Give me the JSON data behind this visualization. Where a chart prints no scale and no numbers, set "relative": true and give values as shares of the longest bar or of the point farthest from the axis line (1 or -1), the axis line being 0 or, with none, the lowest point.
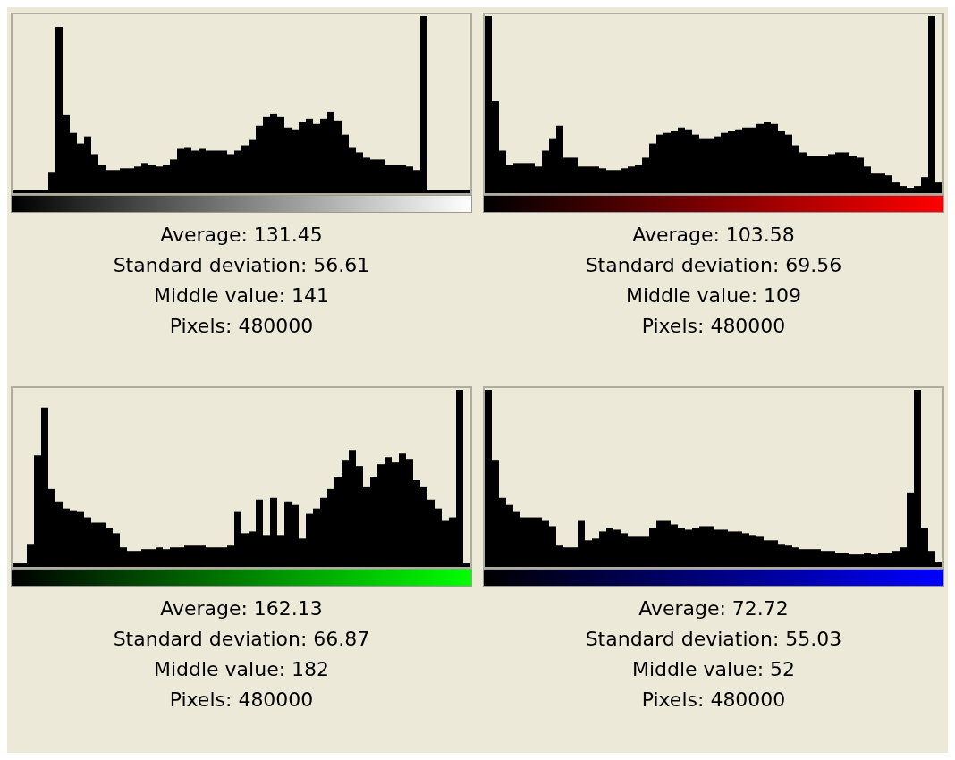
{
  "chart_data": [
    {
      "type": "bar",
      "relative": true,
      "color": "#000000",
      "categories": [
        null,
        null,
        null,
        null,
        null,
        null,
        null,
        null,
        null,
        null,
        null,
        null,
        null,
        null,
        null,
        null,
        null,
        null,
        null,
        null,
        null,
        null,
        null,
        null,
        null,
        null,
        null,
        null,
        null,
        null,
        null,
        null,
        null,
        null,
        null,
        null,
        null,
        null,
        null,
        null,
        null,
        null,
        null,
        null,
        null,
        null,
        null,
        null,
        null,
        null,
        null,
        null,
        null,
        null,
        null,
        null,
        null,
        null,
        null,
        null,
        null,
        null,
        null,
        null
      ],
      "values": [
        0.02,
        0.02,
        0.02,
        0.02,
        0.02,
        0.12,
        0.94,
        0.44,
        0.34,
        0.28,
        0.32,
        0.22,
        0.16,
        0.13,
        0.13,
        0.14,
        0.14,
        0.15,
        0.17,
        0.16,
        0.15,
        0.16,
        0.19,
        0.25,
        0.26,
        0.24,
        0.25,
        0.24,
        0.24,
        0.24,
        0.22,
        0.24,
        0.27,
        0.3,
        0.38,
        0.43,
        0.45,
        0.43,
        0.37,
        0.36,
        0.4,
        0.42,
        0.39,
        0.42,
        0.46,
        0.41,
        0.33,
        0.26,
        0.23,
        0.2,
        0.19,
        0.19,
        0.16,
        0.16,
        0.16,
        0.15,
        0.13,
        1,
        0.02,
        0.02,
        0.02,
        0.02,
        0.02,
        0.02
      ],
      "annotations": [
        "Average: 131.45",
        "Standard deviation: 56.61",
        "Middle value: 141",
        "Pixels: 480000"
      ]
    },
    {
      "type": "bar",
      "relative": true,
      "color": "#000000",
      "categories": [
        null,
        null,
        null,
        null,
        null,
        null,
        null,
        null,
        null,
        null,
        null,
        null,
        null,
        null,
        null,
        null,
        null,
        null,
        null,
        null,
        null,
        null,
        null,
        null,
        null,
        null,
        null,
        null,
        null,
        null,
        null,
        null,
        null,
        null,
        null,
        null,
        null,
        null,
        null,
        null,
        null,
        null,
        null,
        null,
        null,
        null,
        null,
        null,
        null,
        null,
        null,
        null,
        null,
        null,
        null,
        null,
        null,
        null,
        null,
        null,
        null,
        null,
        null,
        null
      ],
      "values": [
        1,
        0.52,
        0.24,
        0.16,
        0.17,
        0.17,
        0.17,
        0.15,
        0.24,
        0.31,
        0.38,
        0.2,
        0.2,
        0.15,
        0.15,
        0.15,
        0.14,
        0.13,
        0.13,
        0.14,
        0.15,
        0.16,
        0.2,
        0.28,
        0.33,
        0.34,
        0.35,
        0.37,
        0.36,
        0.33,
        0.31,
        0.31,
        0.32,
        0.34,
        0.35,
        0.36,
        0.37,
        0.37,
        0.39,
        0.4,
        0.39,
        0.35,
        0.33,
        0.27,
        0.23,
        0.21,
        0.21,
        0.21,
        0.22,
        0.23,
        0.23,
        0.21,
        0.2,
        0.15,
        0.11,
        0.11,
        0.1,
        0.06,
        0.04,
        0.03,
        0.04,
        0.09,
        1,
        0.06
      ],
      "annotations": [
        "Average: 103.58",
        "Standard deviation: 69.56",
        "Middle value: 109",
        "Pixels: 480000"
      ]
    },
    {
      "type": "bar",
      "relative": true,
      "color": "#000000",
      "categories": [
        null,
        null,
        null,
        null,
        null,
        null,
        null,
        null,
        null,
        null,
        null,
        null,
        null,
        null,
        null,
        null,
        null,
        null,
        null,
        null,
        null,
        null,
        null,
        null,
        null,
        null,
        null,
        null,
        null,
        null,
        null,
        null,
        null,
        null,
        null,
        null,
        null,
        null,
        null,
        null,
        null,
        null,
        null,
        null,
        null,
        null,
        null,
        null,
        null,
        null,
        null,
        null,
        null,
        null,
        null,
        null,
        null,
        null,
        null,
        null,
        null,
        null,
        null,
        null
      ],
      "values": [
        0.02,
        0.02,
        0.13,
        0.63,
        0.9,
        0.44,
        0.37,
        0.33,
        0.32,
        0.31,
        0.28,
        0.25,
        0.25,
        0.22,
        0.19,
        0.11,
        0.09,
        0.09,
        0.1,
        0.1,
        0.11,
        0.1,
        0.11,
        0.11,
        0.12,
        0.12,
        0.12,
        0.11,
        0.11,
        0.11,
        0.12,
        0.31,
        0.19,
        0.2,
        0.38,
        0.18,
        0.39,
        0.18,
        0.37,
        0.35,
        0.16,
        0.3,
        0.33,
        0.39,
        0.44,
        0.51,
        0.6,
        0.66,
        0.57,
        0.45,
        0.51,
        0.58,
        0.62,
        0.59,
        0.64,
        0.61,
        0.49,
        0.45,
        0.38,
        0.33,
        0.26,
        0.28,
        1,
        0.02
      ],
      "annotations": [
        "Average: 162.13",
        "Standard deviation: 66.87",
        "Middle value: 182",
        "Pixels: 480000"
      ]
    },
    {
      "type": "bar",
      "relative": true,
      "color": "#000000",
      "categories": [
        null,
        null,
        null,
        null,
        null,
        null,
        null,
        null,
        null,
        null,
        null,
        null,
        null,
        null,
        null,
        null,
        null,
        null,
        null,
        null,
        null,
        null,
        null,
        null,
        null,
        null,
        null,
        null,
        null,
        null,
        null,
        null,
        null,
        null,
        null,
        null,
        null,
        null,
        null,
        null,
        null,
        null,
        null,
        null,
        null,
        null,
        null,
        null,
        null,
        null,
        null,
        null,
        null,
        null,
        null,
        null,
        null,
        null,
        null,
        null,
        null,
        null,
        null,
        null
      ],
      "values": [
        1,
        0.6,
        0.39,
        0.35,
        0.31,
        0.28,
        0.28,
        0.28,
        0.26,
        0.23,
        0.12,
        0.11,
        0.11,
        0.26,
        0.15,
        0.16,
        0.2,
        0.22,
        0.21,
        0.19,
        0.17,
        0.17,
        0.17,
        0.22,
        0.26,
        0.26,
        0.24,
        0.22,
        0.21,
        0.22,
        0.23,
        0.23,
        0.21,
        0.21,
        0.2,
        0.2,
        0.19,
        0.18,
        0.17,
        0.15,
        0.15,
        0.13,
        0.12,
        0.11,
        0.1,
        0.1,
        0.1,
        0.09,
        0.09,
        0.08,
        0.08,
        0.07,
        0.07,
        0.08,
        0.07,
        0.08,
        0.08,
        0.09,
        0.11,
        0.42,
        1,
        0.22,
        0.09,
        0.03
      ],
      "annotations": [
        "Average: 72.72",
        "Standard deviation: 55.03",
        "Middle value: 52",
        "Pixels: 480000"
      ]
    }
  ]
}
